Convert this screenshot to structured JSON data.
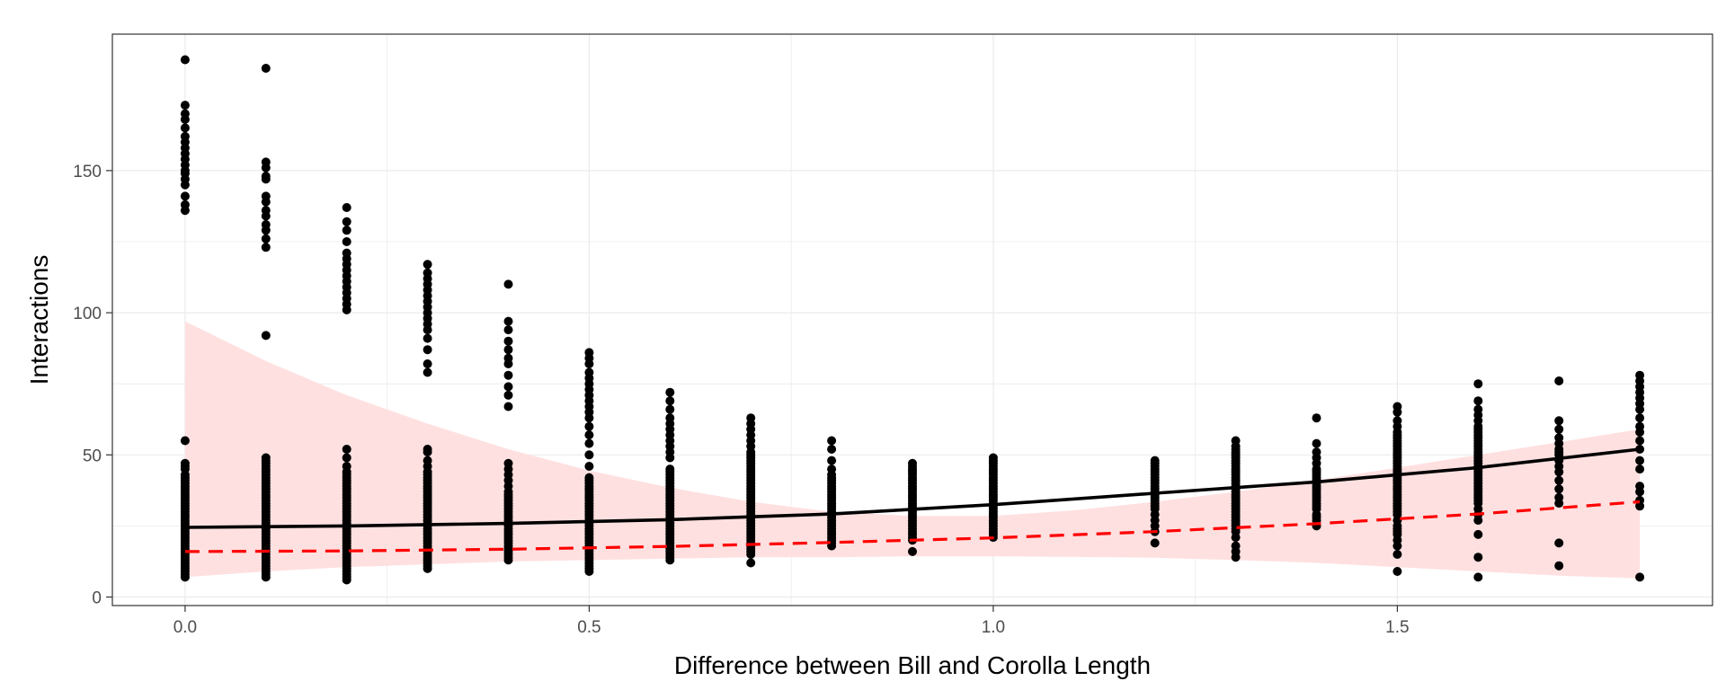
{
  "chart_data": {
    "type": "scatter",
    "xlabel": "Difference between Bill and Corolla Length",
    "ylabel": "Interactions",
    "xlim": [
      -0.09,
      1.89
    ],
    "ylim": [
      -3,
      198
    ],
    "x_ticks": [
      0.0,
      0.5,
      1.0,
      1.5
    ],
    "x_tick_labels": [
      "0.0",
      "0.5",
      "1.0",
      "1.5"
    ],
    "y_ticks": [
      0,
      50,
      100,
      150
    ],
    "y_tick_labels": [
      "0",
      "50",
      "100",
      "150"
    ],
    "grid": true,
    "legend": "none",
    "colors": {
      "points": "#000000",
      "fit_line": "#000000",
      "model_line": "#ff0000",
      "ribbon": "#ffe0e0",
      "panel_border": "#333333",
      "grid": "#ebebeb"
    },
    "points": [
      {
        "x": 0.0,
        "y": [
          7,
          8,
          9,
          10,
          11,
          12,
          13,
          14,
          15,
          16,
          17,
          18,
          19,
          20,
          21,
          22,
          23,
          24,
          25,
          26,
          27,
          28,
          29,
          30,
          31,
          32,
          33,
          34,
          35,
          36,
          37,
          38,
          39,
          40,
          41,
          42,
          43,
          45,
          46,
          47,
          55,
          136,
          138,
          141,
          145,
          147,
          149,
          150,
          152,
          154,
          156,
          158,
          160,
          162,
          165,
          168,
          170,
          173,
          189
        ]
      },
      {
        "x": 0.1,
        "y": [
          7,
          8,
          9,
          10,
          11,
          12,
          13,
          14,
          15,
          16,
          17,
          18,
          19,
          20,
          21,
          22,
          23,
          24,
          25,
          26,
          27,
          28,
          29,
          30,
          31,
          32,
          33,
          34,
          35,
          36,
          37,
          38,
          39,
          40,
          41,
          42,
          43,
          44,
          45,
          46,
          47,
          48,
          49,
          92,
          123,
          126,
          129,
          131,
          134,
          136,
          139,
          141,
          147,
          148,
          151,
          153,
          186
        ]
      },
      {
        "x": 0.2,
        "y": [
          6,
          7,
          8,
          9,
          10,
          11,
          12,
          13,
          14,
          15,
          16,
          17,
          18,
          19,
          20,
          21,
          22,
          23,
          24,
          25,
          26,
          27,
          28,
          29,
          30,
          31,
          32,
          33,
          34,
          35,
          36,
          37,
          38,
          39,
          40,
          41,
          42,
          43,
          44,
          46,
          49,
          52,
          101,
          103,
          105,
          107,
          109,
          111,
          113,
          115,
          117,
          119,
          121,
          125,
          129,
          132,
          137
        ]
      },
      {
        "x": 0.3,
        "y": [
          10,
          11,
          12,
          13,
          14,
          15,
          16,
          17,
          18,
          19,
          20,
          21,
          22,
          23,
          24,
          25,
          26,
          27,
          28,
          29,
          30,
          31,
          32,
          33,
          34,
          35,
          36,
          37,
          38,
          39,
          40,
          41,
          42,
          43,
          44,
          46,
          48,
          51,
          52,
          79,
          82,
          87,
          91,
          94,
          96,
          98,
          100,
          102,
          104,
          106,
          108,
          110,
          112,
          114,
          117
        ]
      },
      {
        "x": 0.4,
        "y": [
          13,
          14,
          15,
          16,
          17,
          18,
          19,
          20,
          21,
          22,
          23,
          24,
          25,
          26,
          27,
          28,
          29,
          30,
          31,
          32,
          33,
          34,
          35,
          36,
          37,
          39,
          41,
          43,
          45,
          47,
          67,
          71,
          74,
          78,
          82,
          84,
          87,
          90,
          94,
          97,
          110
        ]
      },
      {
        "x": 0.5,
        "y": [
          9,
          10,
          11,
          12,
          13,
          14,
          15,
          16,
          17,
          18,
          19,
          20,
          21,
          22,
          23,
          24,
          25,
          26,
          27,
          28,
          29,
          30,
          31,
          32,
          33,
          34,
          35,
          36,
          37,
          38,
          39,
          40,
          41,
          42,
          46,
          50,
          54,
          57,
          60,
          63,
          65,
          67,
          69,
          71,
          73,
          75,
          77,
          79,
          82,
          84,
          86
        ]
      },
      {
        "x": 0.6,
        "y": [
          13,
          14,
          15,
          16,
          17,
          18,
          19,
          20,
          21,
          22,
          23,
          24,
          25,
          26,
          27,
          28,
          29,
          30,
          31,
          32,
          33,
          34,
          35,
          36,
          37,
          38,
          39,
          40,
          41,
          42,
          43,
          44,
          45,
          49,
          51,
          53,
          55,
          57,
          59,
          61,
          63,
          66,
          69,
          72
        ]
      },
      {
        "x": 0.7,
        "y": [
          12,
          15,
          16,
          17,
          18,
          19,
          20,
          21,
          22,
          23,
          24,
          25,
          26,
          27,
          28,
          29,
          30,
          31,
          32,
          33,
          34,
          35,
          36,
          37,
          38,
          39,
          40,
          41,
          42,
          43,
          44,
          45,
          46,
          47,
          48,
          49,
          50,
          51,
          53,
          55,
          57,
          59,
          61,
          63
        ]
      },
      {
        "x": 0.8,
        "y": [
          18,
          19,
          20,
          21,
          22,
          23,
          24,
          25,
          26,
          27,
          28,
          29,
          30,
          31,
          32,
          33,
          34,
          35,
          36,
          37,
          38,
          39,
          40,
          41,
          42,
          43,
          45,
          48,
          52,
          55
        ]
      },
      {
        "x": 0.9,
        "y": [
          16,
          20,
          21,
          22,
          23,
          24,
          25,
          26,
          27,
          28,
          29,
          30,
          31,
          32,
          33,
          34,
          35,
          36,
          37,
          38,
          39,
          40,
          41,
          42,
          43,
          44,
          45,
          46,
          47
        ]
      },
      {
        "x": 1.0,
        "y": [
          21,
          22,
          23,
          24,
          25,
          26,
          27,
          28,
          29,
          30,
          31,
          32,
          33,
          34,
          35,
          36,
          37,
          38,
          39,
          40,
          41,
          42,
          43,
          44,
          45,
          46,
          47,
          48,
          49
        ]
      },
      {
        "x": 1.2,
        "y": [
          19,
          23,
          25,
          27,
          29,
          31,
          32,
          33,
          34,
          35,
          36,
          37,
          38,
          39,
          40,
          41,
          42,
          43,
          44,
          45,
          46,
          47,
          48
        ]
      },
      {
        "x": 1.3,
        "y": [
          14,
          16,
          18,
          21,
          23,
          24,
          25,
          26,
          27,
          28,
          29,
          30,
          31,
          32,
          33,
          34,
          35,
          36,
          37,
          38,
          39,
          40,
          41,
          42,
          43,
          44,
          45,
          46,
          47,
          48,
          49,
          50,
          51,
          52,
          53,
          55
        ]
      },
      {
        "x": 1.4,
        "y": [
          25,
          27,
          28,
          29,
          31,
          32,
          33,
          34,
          35,
          36,
          37,
          38,
          39,
          40,
          41,
          42,
          43,
          44,
          45,
          47,
          49,
          51,
          54,
          63
        ]
      },
      {
        "x": 1.5,
        "y": [
          9,
          15,
          18,
          20,
          22,
          23,
          24,
          25,
          27,
          29,
          30,
          31,
          32,
          33,
          34,
          35,
          36,
          37,
          38,
          39,
          40,
          41,
          42,
          43,
          44,
          45,
          46,
          47,
          48,
          49,
          50,
          51,
          52,
          53,
          54,
          55,
          56,
          57,
          58,
          60,
          62,
          65,
          67
        ]
      },
      {
        "x": 1.6,
        "y": [
          7,
          14,
          22,
          27,
          29,
          31,
          33,
          34,
          35,
          36,
          37,
          38,
          39,
          40,
          41,
          42,
          43,
          44,
          45,
          46,
          47,
          48,
          49,
          50,
          51,
          52,
          53,
          54,
          55,
          56,
          57,
          58,
          59,
          60,
          62,
          64,
          66,
          69,
          75
        ]
      },
      {
        "x": 1.7,
        "y": [
          11,
          19,
          33,
          35,
          38,
          41,
          44,
          46,
          48,
          50,
          51,
          52,
          54,
          56,
          59,
          62,
          76
        ]
      },
      {
        "x": 1.8,
        "y": [
          7,
          32,
          34,
          37,
          39,
          45,
          48,
          52,
          55,
          58,
          60,
          63,
          66,
          68,
          70,
          72,
          74,
          76,
          78
        ]
      }
    ],
    "fit_line": {
      "style": "solid",
      "x": [
        0.0,
        0.2,
        0.4,
        0.6,
        0.8,
        1.0,
        1.2,
        1.4,
        1.6,
        1.8
      ],
      "y": [
        24.5,
        25.0,
        25.9,
        27.2,
        29.2,
        32.5,
        36.5,
        40.5,
        45.5,
        52.0
      ]
    },
    "model_line": {
      "style": "dashed",
      "x": [
        0.0,
        0.2,
        0.4,
        0.6,
        0.8,
        1.0,
        1.2,
        1.4,
        1.6,
        1.8
      ],
      "y": [
        16.0,
        16.2,
        16.8,
        17.8,
        19.2,
        20.8,
        23.0,
        25.8,
        29.2,
        33.5
      ]
    },
    "ribbon": {
      "x": [
        0.0,
        0.1,
        0.2,
        0.3,
        0.4,
        0.5,
        0.6,
        0.7,
        0.8,
        0.9,
        1.0,
        1.1,
        1.2,
        1.3,
        1.4,
        1.5,
        1.6,
        1.7,
        1.8
      ],
      "upper": [
        97,
        83,
        71,
        61,
        52,
        44.5,
        38.5,
        33.5,
        30,
        28.5,
        28.5,
        30.5,
        33.5,
        37,
        41,
        45.5,
        50,
        54.5,
        59
      ],
      "lower": [
        7,
        9,
        10.5,
        11.5,
        12.5,
        13,
        13.5,
        14,
        14,
        14.3,
        14.3,
        14.1,
        13.8,
        13,
        12,
        10.5,
        9,
        7.5,
        6.5
      ]
    }
  }
}
